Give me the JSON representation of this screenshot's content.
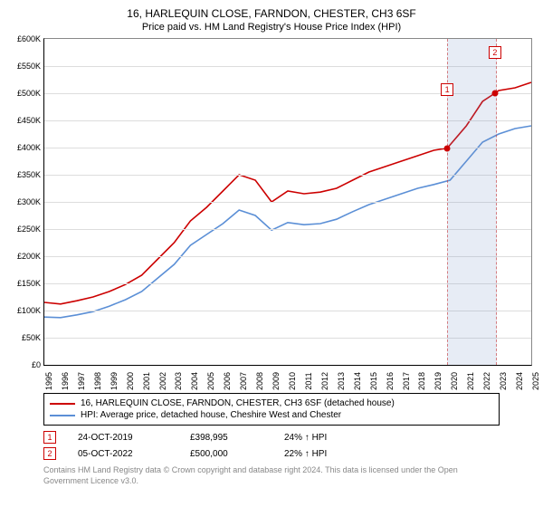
{
  "title": "16, HARLEQUIN CLOSE, FARNDON, CHESTER, CH3 6SF",
  "subtitle": "Price paid vs. HM Land Registry's House Price Index (HPI)",
  "chart": {
    "type": "line",
    "background_color": "#ffffff",
    "grid_color": "#dddddd",
    "ylim": [
      0,
      600000
    ],
    "ytick_step": 50000,
    "yticks": [
      "£0",
      "£50K",
      "£100K",
      "£150K",
      "£200K",
      "£250K",
      "£300K",
      "£350K",
      "£400K",
      "£450K",
      "£500K",
      "£550K",
      "£600K"
    ],
    "xlim": [
      1995,
      2025
    ],
    "xticks": [
      1995,
      1996,
      1997,
      1998,
      1999,
      2000,
      2001,
      2002,
      2003,
      2004,
      2005,
      2006,
      2007,
      2008,
      2009,
      2010,
      2011,
      2012,
      2013,
      2014,
      2015,
      2016,
      2017,
      2018,
      2019,
      2020,
      2021,
      2022,
      2023,
      2024,
      2025
    ],
    "highlight_band": {
      "from": 2019.82,
      "to": 2022.76,
      "fill": "rgba(120,150,200,0.18)",
      "border": "rgba(200,50,50,0.6)"
    },
    "label_fontsize": 9,
    "series": [
      {
        "name": "16, HARLEQUIN CLOSE, FARNDON, CHESTER, CH3 6SF (detached house)",
        "color": "#cc0000",
        "line_width": 1.6,
        "data": [
          [
            1995,
            115000
          ],
          [
            1996,
            112000
          ],
          [
            1997,
            118000
          ],
          [
            1998,
            125000
          ],
          [
            1999,
            135000
          ],
          [
            2000,
            148000
          ],
          [
            2001,
            165000
          ],
          [
            2002,
            195000
          ],
          [
            2003,
            225000
          ],
          [
            2004,
            265000
          ],
          [
            2005,
            290000
          ],
          [
            2006,
            320000
          ],
          [
            2007,
            350000
          ],
          [
            2008,
            340000
          ],
          [
            2009,
            300000
          ],
          [
            2010,
            320000
          ],
          [
            2011,
            315000
          ],
          [
            2012,
            318000
          ],
          [
            2013,
            325000
          ],
          [
            2014,
            340000
          ],
          [
            2015,
            355000
          ],
          [
            2016,
            365000
          ],
          [
            2017,
            375000
          ],
          [
            2018,
            385000
          ],
          [
            2019,
            395000
          ],
          [
            2019.82,
            398995
          ],
          [
            2020,
            405000
          ],
          [
            2021,
            440000
          ],
          [
            2022,
            485000
          ],
          [
            2022.76,
            500000
          ],
          [
            2023,
            505000
          ],
          [
            2024,
            510000
          ],
          [
            2025,
            520000
          ]
        ]
      },
      {
        "name": "HPI: Average price, detached house, Cheshire West and Chester",
        "color": "#5b8fd6",
        "line_width": 1.6,
        "data": [
          [
            1995,
            88000
          ],
          [
            1996,
            87000
          ],
          [
            1997,
            92000
          ],
          [
            1998,
            98000
          ],
          [
            1999,
            108000
          ],
          [
            2000,
            120000
          ],
          [
            2001,
            135000
          ],
          [
            2002,
            160000
          ],
          [
            2003,
            185000
          ],
          [
            2004,
            220000
          ],
          [
            2005,
            240000
          ],
          [
            2006,
            260000
          ],
          [
            2007,
            285000
          ],
          [
            2008,
            275000
          ],
          [
            2009,
            248000
          ],
          [
            2010,
            262000
          ],
          [
            2011,
            258000
          ],
          [
            2012,
            260000
          ],
          [
            2013,
            268000
          ],
          [
            2014,
            282000
          ],
          [
            2015,
            295000
          ],
          [
            2016,
            305000
          ],
          [
            2017,
            315000
          ],
          [
            2018,
            325000
          ],
          [
            2019,
            332000
          ],
          [
            2020,
            340000
          ],
          [
            2021,
            375000
          ],
          [
            2022,
            410000
          ],
          [
            2023,
            425000
          ],
          [
            2024,
            435000
          ],
          [
            2025,
            440000
          ]
        ]
      }
    ],
    "markers": [
      {
        "label": "1",
        "x": 2019.82,
        "y": 398995,
        "top_offset": -65,
        "box_color": "#cc0000",
        "dot_color": "#cc0000"
      },
      {
        "label": "2",
        "x": 2022.76,
        "y": 500000,
        "top_offset": -45,
        "box_color": "#cc0000",
        "dot_color": "#cc0000"
      }
    ]
  },
  "legend": {
    "items": [
      {
        "color": "#cc0000",
        "label": "16, HARLEQUIN CLOSE, FARNDON, CHESTER, CH3 6SF (detached house)"
      },
      {
        "color": "#5b8fd6",
        "label": "HPI: Average price, detached house, Cheshire West and Chester"
      }
    ]
  },
  "footer_rows": [
    {
      "marker": "1",
      "marker_color": "#cc0000",
      "date": "24-OCT-2019",
      "price": "£398,995",
      "delta": "24% ↑ HPI"
    },
    {
      "marker": "2",
      "marker_color": "#cc0000",
      "date": "05-OCT-2022",
      "price": "£500,000",
      "delta": "22% ↑ HPI"
    }
  ],
  "attribution": "Contains HM Land Registry data © Crown copyright and database right 2024. This data is licensed under the Open Government Licence v3.0."
}
